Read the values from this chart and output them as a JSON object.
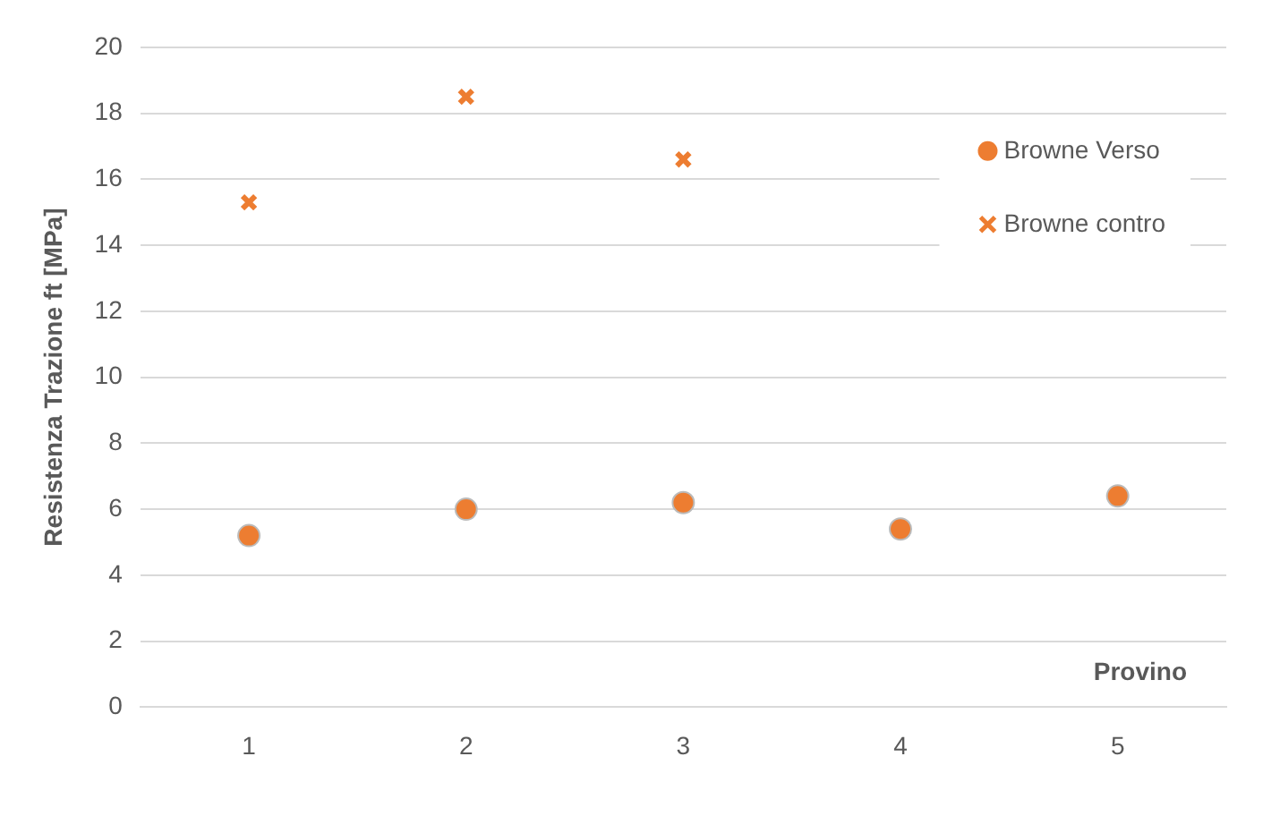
{
  "chart_data": {
    "type": "scatter",
    "xlabel": "Provino",
    "ylabel": "Resistenza Trazione ft [MPa]",
    "categories": [
      "1",
      "2",
      "3",
      "4",
      "5"
    ],
    "series": [
      {
        "name": "Browne Verso",
        "color": "#ed7d31",
        "marker": "circle",
        "values": [
          5.2,
          6.0,
          6.2,
          5.4,
          6.4
        ]
      },
      {
        "name": "Browne contro",
        "color": "#ed7d31",
        "marker": "cross",
        "values": [
          15.3,
          18.5,
          16.6,
          null,
          null
        ]
      }
    ],
    "ylim": [
      0,
      20
    ],
    "yticks": [
      0,
      2,
      4,
      6,
      8,
      10,
      12,
      14,
      16,
      18,
      20
    ],
    "grid": "y",
    "legend": "top right"
  }
}
